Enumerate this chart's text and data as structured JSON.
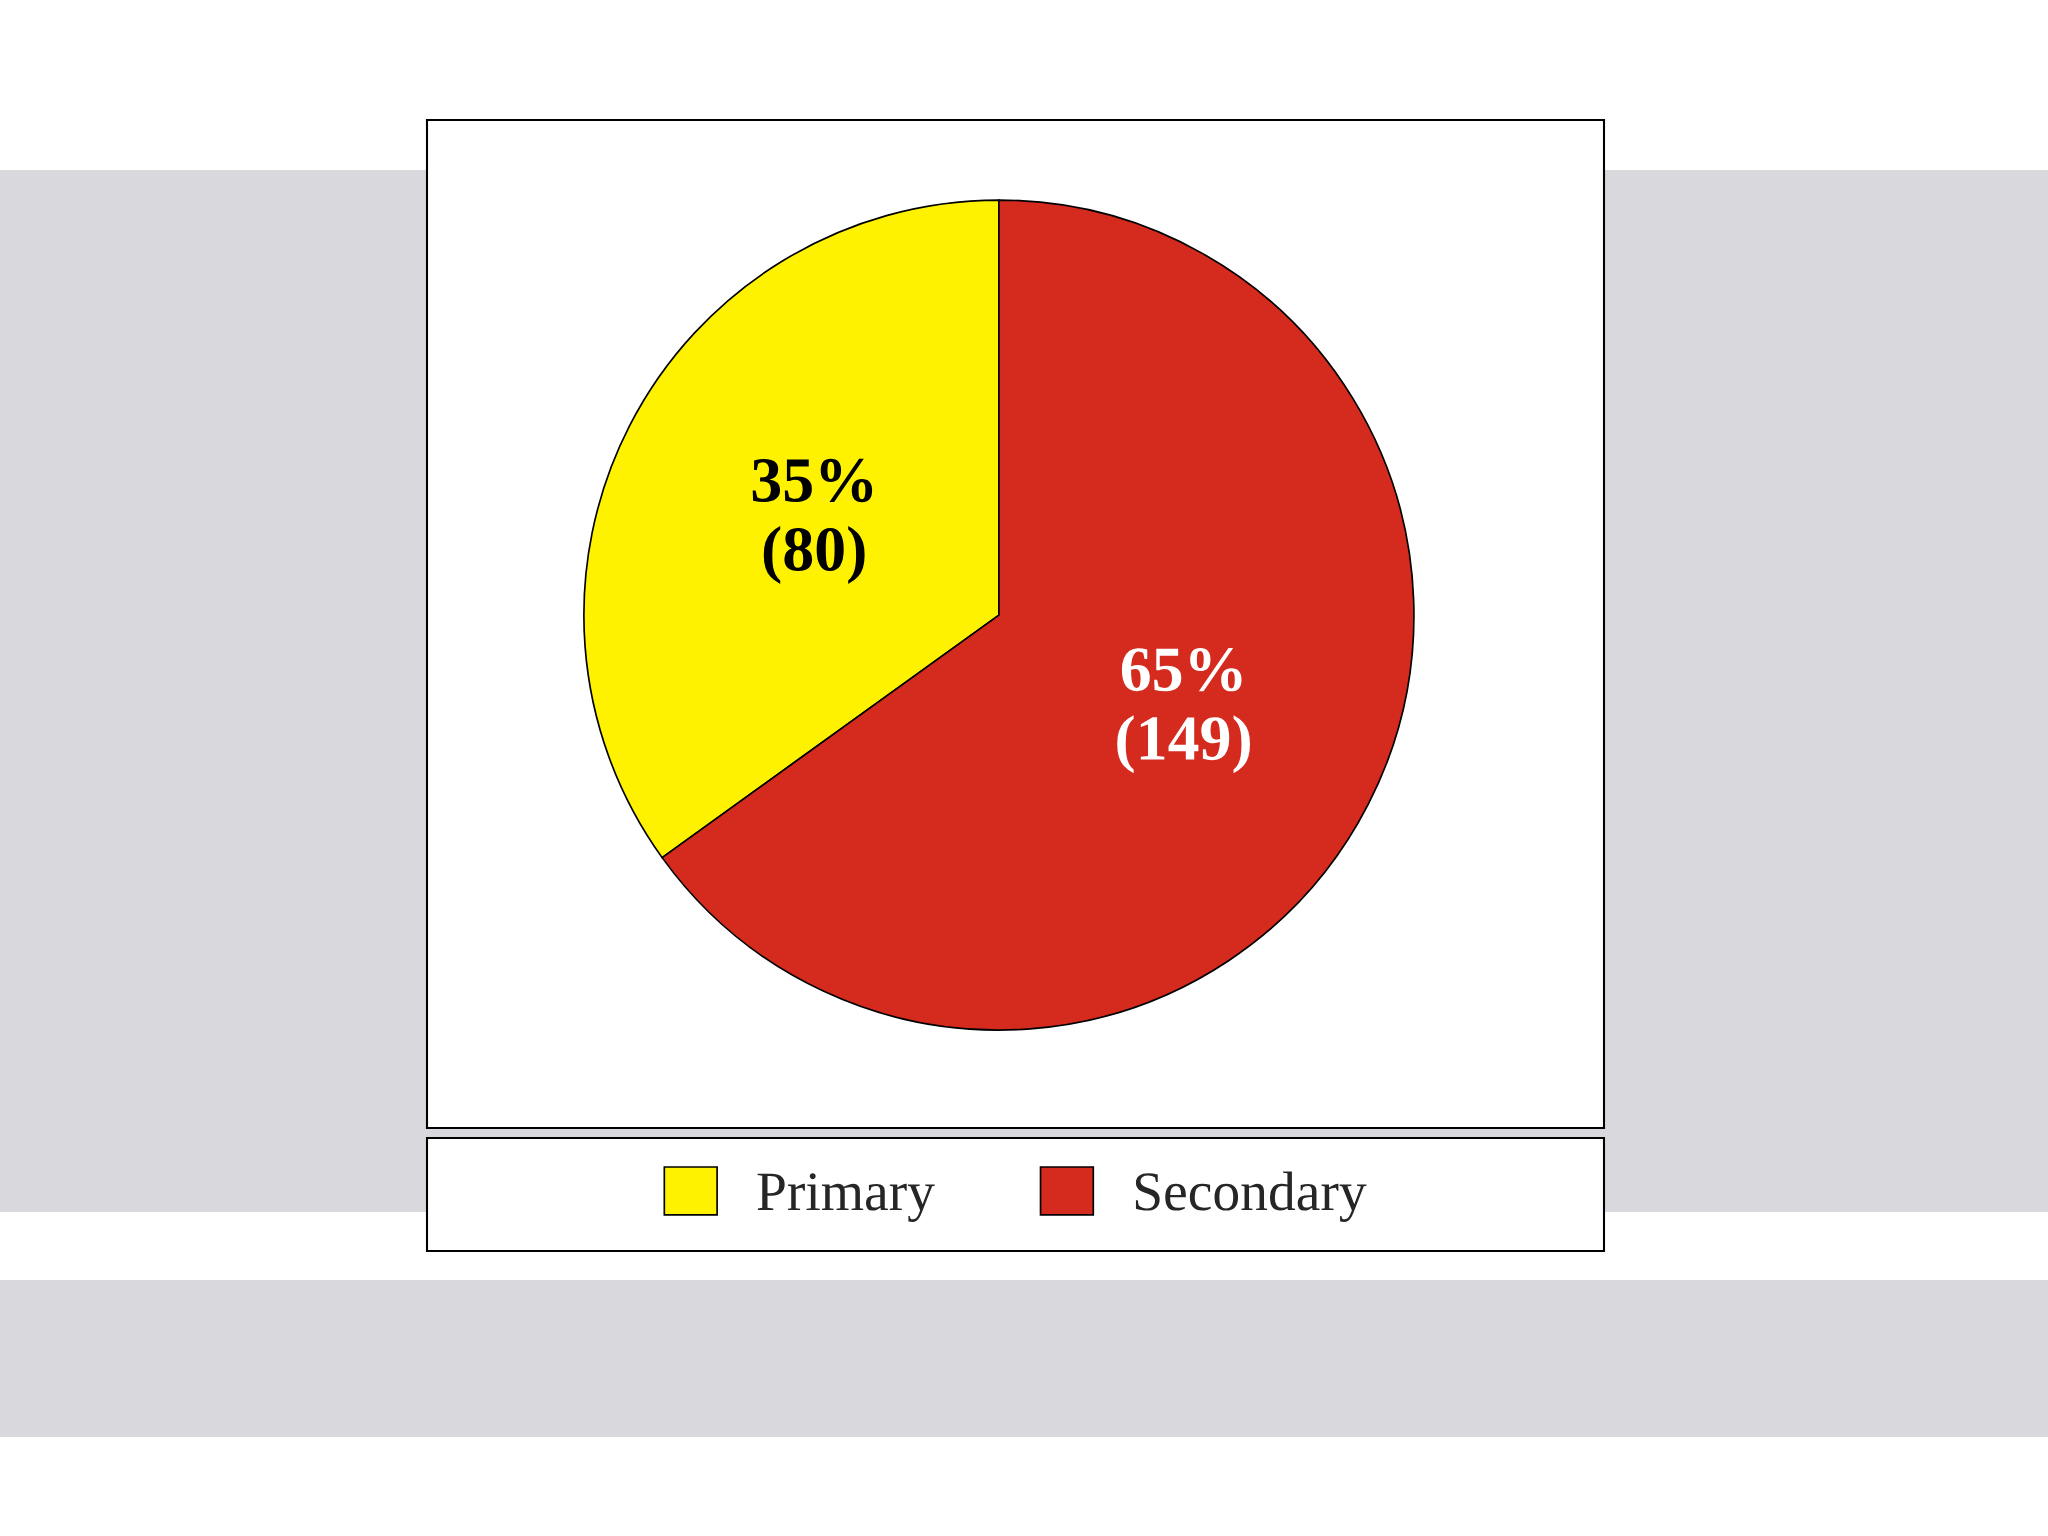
{
  "chart_data": {
    "type": "pie",
    "categories": [
      "Primary",
      "Secondary"
    ],
    "values": [
      80,
      149
    ],
    "colors": [
      "#fff200",
      "#d52b1e"
    ],
    "value_labels": [
      "35%\n(80)",
      "65%\n(149)"
    ],
    "legend": "bottom"
  }
}
